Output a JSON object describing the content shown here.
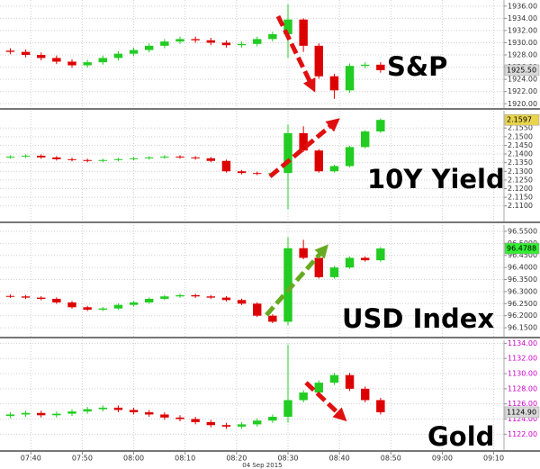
{
  "chart_data": [
    {
      "type": "candlestick",
      "title": "S&P",
      "x": [
        "07:36",
        "07:39",
        "07:42",
        "07:45",
        "07:48",
        "07:51",
        "07:54",
        "07:57",
        "08:00",
        "08:03",
        "08:06",
        "08:09",
        "08:12",
        "08:15",
        "08:18",
        "08:21",
        "08:24",
        "08:27",
        "08:30",
        "08:33",
        "08:36",
        "08:39",
        "08:42",
        "08:45",
        "08:48"
      ],
      "open": [
        1928.7,
        1928.5,
        1928.0,
        1927.5,
        1926.9,
        1926.3,
        1926.8,
        1927.5,
        1928.2,
        1928.8,
        1929.5,
        1930.2,
        1930.6,
        1930.4,
        1930.0,
        1929.6,
        1929.8,
        1930.6,
        1931.4,
        1933.8,
        1929.5,
        1924.5,
        1922.2,
        1926.2,
        1926.4
      ],
      "high": [
        1929.1,
        1928.9,
        1928.4,
        1927.9,
        1927.3,
        1927.2,
        1927.9,
        1928.6,
        1929.2,
        1929.9,
        1930.6,
        1931.0,
        1931.0,
        1930.8,
        1930.4,
        1930.2,
        1931.0,
        1931.8,
        1936.3,
        1934.0,
        1929.9,
        1924.9,
        1926.6,
        1926.8,
        1926.8
      ],
      "low": [
        1928.1,
        1927.6,
        1927.1,
        1926.5,
        1925.9,
        1925.9,
        1926.4,
        1927.1,
        1927.8,
        1928.4,
        1929.1,
        1929.8,
        1930.0,
        1929.6,
        1929.2,
        1929.2,
        1929.4,
        1930.2,
        1927.5,
        1928.5,
        1924.1,
        1920.8,
        1921.8,
        1925.8,
        1925.1
      ],
      "close": [
        1928.5,
        1928.0,
        1927.5,
        1926.9,
        1926.3,
        1926.8,
        1927.5,
        1928.2,
        1928.8,
        1929.5,
        1930.2,
        1930.6,
        1930.4,
        1930.0,
        1929.6,
        1929.8,
        1930.6,
        1931.4,
        1933.8,
        1929.5,
        1924.5,
        1922.2,
        1926.2,
        1926.4,
        1925.5
      ],
      "xlim": [
        "07:34",
        "09:12"
      ],
      "ylim": [
        1919.3,
        1937
      ],
      "yticks": [
        {
          "value": 1920,
          "label": "1920.00"
        },
        {
          "value": 1922,
          "label": "1922.00"
        },
        {
          "value": 1924,
          "label": "1924.00"
        },
        {
          "value": 1926,
          "label": "1926.00"
        },
        {
          "value": 1928,
          "label": "1928.00"
        },
        {
          "value": 1930,
          "label": "1930.00"
        },
        {
          "value": 1932,
          "label": "1932.00"
        },
        {
          "value": 1934,
          "label": "1934.00"
        },
        {
          "value": 1936,
          "label": "1936.00"
        }
      ],
      "last_price": {
        "value": 1925.5,
        "label": "1925.50"
      },
      "last_color": "#d9d9d9",
      "up_color": "#22cc22",
      "down_color": "#dd0000",
      "tick_color": "#333333",
      "grid": true
    },
    {
      "type": "candlestick",
      "title": "10Y Yield",
      "x": [
        "07:36",
        "07:39",
        "07:42",
        "07:45",
        "07:48",
        "07:51",
        "07:54",
        "07:57",
        "08:00",
        "08:03",
        "08:06",
        "08:09",
        "08:12",
        "08:15",
        "08:18",
        "08:21",
        "08:24",
        "08:27",
        "08:30",
        "08:33",
        "08:36",
        "08:39",
        "08:42",
        "08:45",
        "08:48"
      ],
      "open": [
        2.138,
        2.1385,
        2.139,
        2.138,
        2.137,
        2.1365,
        2.136,
        2.1365,
        2.137,
        2.1375,
        2.138,
        2.1385,
        2.138,
        2.1375,
        2.136,
        2.13,
        2.129,
        2.1285,
        2.129,
        2.152,
        2.142,
        2.13,
        2.133,
        2.144,
        2.153
      ],
      "high": [
        2.1393,
        2.1398,
        2.1398,
        2.1388,
        2.1378,
        2.1373,
        2.1373,
        2.1378,
        2.1383,
        2.1388,
        2.1393,
        2.1393,
        2.1388,
        2.1383,
        2.1368,
        2.1308,
        2.1298,
        2.1298,
        2.157,
        2.156,
        2.1428,
        2.1338,
        2.1448,
        2.1538,
        2.1605
      ],
      "low": [
        2.1372,
        2.1377,
        2.1372,
        2.1362,
        2.1357,
        2.1352,
        2.1352,
        2.1357,
        2.1362,
        2.1367,
        2.1372,
        2.1372,
        2.1367,
        2.1352,
        2.1292,
        2.1282,
        2.1277,
        2.1277,
        2.108,
        2.1412,
        2.1292,
        2.1292,
        2.1322,
        2.1432,
        2.1522
      ],
      "close": [
        2.1385,
        2.139,
        2.138,
        2.137,
        2.1365,
        2.136,
        2.1365,
        2.137,
        2.1375,
        2.138,
        2.1385,
        2.138,
        2.1375,
        2.136,
        2.13,
        2.129,
        2.1285,
        2.129,
        2.152,
        2.142,
        2.13,
        2.133,
        2.144,
        2.153,
        2.1597
      ],
      "xlim": [
        "07:34",
        "09:12"
      ],
      "ylim": [
        2.101,
        2.165
      ],
      "yticks": [
        {
          "value": 2.11,
          "label": "2.1100"
        },
        {
          "value": 2.115,
          "label": "2.1150"
        },
        {
          "value": 2.12,
          "label": "2.1200"
        },
        {
          "value": 2.125,
          "label": "2.1250"
        },
        {
          "value": 2.13,
          "label": "2.1300"
        },
        {
          "value": 2.135,
          "label": "2.1350"
        },
        {
          "value": 2.14,
          "label": "2.1400"
        },
        {
          "value": 2.145,
          "label": "2.1450"
        },
        {
          "value": 2.15,
          "label": "2.1500"
        },
        {
          "value": 2.155,
          "label": "2.1550"
        }
      ],
      "last_price": {
        "value": 2.1597,
        "label": "2.1597"
      },
      "last_color": "#e8d44d",
      "up_color": "#22cc22",
      "down_color": "#dd0000",
      "tick_color": "#333333",
      "grid": true
    },
    {
      "type": "candlestick",
      "title": "USD Index",
      "x": [
        "07:36",
        "07:39",
        "07:42",
        "07:45",
        "07:48",
        "07:51",
        "07:54",
        "07:57",
        "08:00",
        "08:03",
        "08:06",
        "08:09",
        "08:12",
        "08:15",
        "08:18",
        "08:21",
        "08:24",
        "08:27",
        "08:30",
        "08:33",
        "08:36",
        "08:39",
        "08:42",
        "08:45",
        "08:48"
      ],
      "open": [
        96.282,
        96.28,
        96.275,
        96.27,
        96.255,
        96.235,
        96.225,
        96.23,
        96.245,
        96.255,
        96.27,
        96.28,
        96.285,
        96.28,
        96.275,
        96.265,
        96.25,
        96.2,
        96.175,
        96.48,
        96.44,
        96.36,
        96.4,
        96.44,
        96.43
      ],
      "high": [
        96.288,
        96.286,
        96.281,
        96.276,
        96.261,
        96.241,
        96.236,
        96.251,
        96.261,
        96.276,
        96.286,
        96.291,
        96.291,
        96.286,
        96.281,
        96.271,
        96.256,
        96.206,
        96.525,
        96.515,
        96.446,
        96.406,
        96.446,
        96.446,
        96.4848
      ],
      "low": [
        96.274,
        96.269,
        96.264,
        96.249,
        96.229,
        96.219,
        96.219,
        96.224,
        96.239,
        96.249,
        96.264,
        96.274,
        96.274,
        96.269,
        96.259,
        96.244,
        96.194,
        96.169,
        96.16,
        96.434,
        96.354,
        96.354,
        96.394,
        96.424,
        96.424
      ],
      "close": [
        96.28,
        96.275,
        96.27,
        96.255,
        96.235,
        96.225,
        96.23,
        96.245,
        96.255,
        96.27,
        96.28,
        96.285,
        96.28,
        96.275,
        96.265,
        96.25,
        96.2,
        96.175,
        96.48,
        96.44,
        96.36,
        96.4,
        96.44,
        96.43,
        96.4788
      ],
      "xlim": [
        "07:34",
        "09:12"
      ],
      "ylim": [
        96.113,
        96.576
      ],
      "yticks": [
        {
          "value": 96.15,
          "label": "96.1500"
        },
        {
          "value": 96.2,
          "label": "96.2000"
        },
        {
          "value": 96.25,
          "label": "96.2500"
        },
        {
          "value": 96.3,
          "label": "96.3000"
        },
        {
          "value": 96.35,
          "label": "96.3500"
        },
        {
          "value": 96.4,
          "label": "96.4000"
        },
        {
          "value": 96.45,
          "label": "96.4500"
        },
        {
          "value": 96.5,
          "label": "96.5000"
        },
        {
          "value": 96.55,
          "label": "96.5500"
        }
      ],
      "last_price": {
        "value": 96.4788,
        "label": "96.4788"
      },
      "last_color": "#33ee33",
      "up_color": "#22cc22",
      "down_color": "#dd0000",
      "tick_color": "#333333",
      "grid": true
    },
    {
      "type": "candlestick",
      "title": "Gold",
      "x": [
        "07:36",
        "07:39",
        "07:42",
        "07:45",
        "07:48",
        "07:51",
        "07:54",
        "07:57",
        "08:00",
        "08:03",
        "08:06",
        "08:09",
        "08:12",
        "08:15",
        "08:18",
        "08:21",
        "08:24",
        "08:27",
        "08:30",
        "08:33",
        "08:36",
        "08:39",
        "08:42",
        "08:45",
        "08:48"
      ],
      "open": [
        1124.4,
        1124.6,
        1124.8,
        1124.5,
        1124.7,
        1125.0,
        1125.3,
        1125.5,
        1125.2,
        1124.9,
        1124.6,
        1124.2,
        1124.0,
        1123.6,
        1123.2,
        1123.0,
        1123.3,
        1123.8,
        1124.3,
        1126.5,
        1127.5,
        1128.8,
        1129.8,
        1128.0,
        1126.5
      ],
      "high": [
        1124.9,
        1125.1,
        1125.1,
        1125.0,
        1125.3,
        1125.6,
        1125.8,
        1125.8,
        1125.5,
        1125.2,
        1124.9,
        1124.5,
        1124.3,
        1123.9,
        1123.5,
        1123.6,
        1124.1,
        1124.6,
        1133.8,
        1127.8,
        1129.1,
        1130.1,
        1130.1,
        1128.3,
        1126.8
      ],
      "low": [
        1124.1,
        1124.3,
        1124.2,
        1124.2,
        1124.4,
        1124.7,
        1125.0,
        1124.9,
        1124.6,
        1124.3,
        1123.9,
        1123.7,
        1123.3,
        1122.9,
        1122.7,
        1122.7,
        1123.0,
        1123.5,
        1123.5,
        1126.2,
        1127.2,
        1128.5,
        1127.7,
        1126.2,
        1124.6
      ],
      "close": [
        1124.6,
        1124.8,
        1124.5,
        1124.7,
        1125.0,
        1125.3,
        1125.5,
        1125.2,
        1124.9,
        1124.6,
        1124.2,
        1124.0,
        1123.6,
        1123.2,
        1123.0,
        1123.3,
        1123.8,
        1124.3,
        1126.5,
        1127.5,
        1128.8,
        1129.8,
        1128.0,
        1126.5,
        1124.9
      ],
      "xlim": [
        "07:34",
        "09:12"
      ],
      "ylim": [
        1119.9,
        1134.4
      ],
      "yticks": [
        {
          "value": 1122,
          "label": "1122.00"
        },
        {
          "value": 1124,
          "label": "1124.00"
        },
        {
          "value": 1126,
          "label": "1126.00"
        },
        {
          "value": 1128,
          "label": "1128.00"
        },
        {
          "value": 1130,
          "label": "1130.00"
        },
        {
          "value": 1132,
          "label": "1132.00"
        },
        {
          "value": 1134,
          "label": "1134.00"
        }
      ],
      "last_price": {
        "value": 1124.9,
        "label": "1124.90"
      },
      "last_color": "#d9d9d9",
      "up_color": "#22cc22",
      "down_color": "#dd0000",
      "tick_color": "#cc00cc",
      "grid": true,
      "xticks": [
        "07:40",
        "07:50",
        "08:00",
        "08:10",
        "08:20",
        "08:30",
        "08:40",
        "08:50",
        "09:00",
        "09:10"
      ],
      "xlabel": "04 Sep 2015"
    }
  ]
}
